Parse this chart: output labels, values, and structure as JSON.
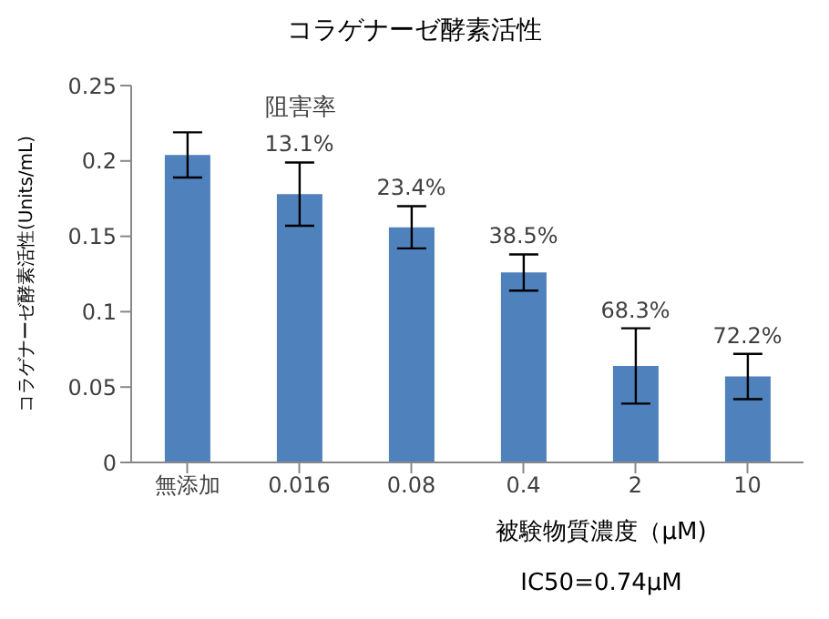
{
  "chart_data": {
    "type": "bar",
    "title": "コラゲナーゼ酵素活性",
    "xlabel": "被験物質濃度（μM)",
    "ylabel": "コラゲナーゼ酵素活性(Units/mL)",
    "categories": [
      "無添加",
      "0.016",
      "0.08",
      "0.4",
      "2",
      "10"
    ],
    "values": [
      0.204,
      0.178,
      0.156,
      0.126,
      0.064,
      0.057
    ],
    "errors": [
      0.015,
      0.021,
      0.014,
      0.012,
      0.025,
      0.015
    ],
    "color": "#4f81bd",
    "ylim": [
      0,
      0.25
    ],
    "yticks": [
      0,
      0.05,
      0.1,
      0.15,
      0.2,
      0.25
    ],
    "annotations": [
      "阻害率",
      {
        "text": "13.1%",
        "x": "0.016",
        "y": 0.199
      },
      {
        "text": "23.4%",
        "x": "0.08",
        "y": 0.17
      },
      {
        "text": "38.5%",
        "x": "0.4",
        "y": 0.138
      },
      {
        "text": "68.3%",
        "x": "2",
        "y": 0.089
      },
      {
        "text": "72.2%",
        "x": "10",
        "y": 0.072
      },
      "IC50=0.74μM"
    ]
  }
}
